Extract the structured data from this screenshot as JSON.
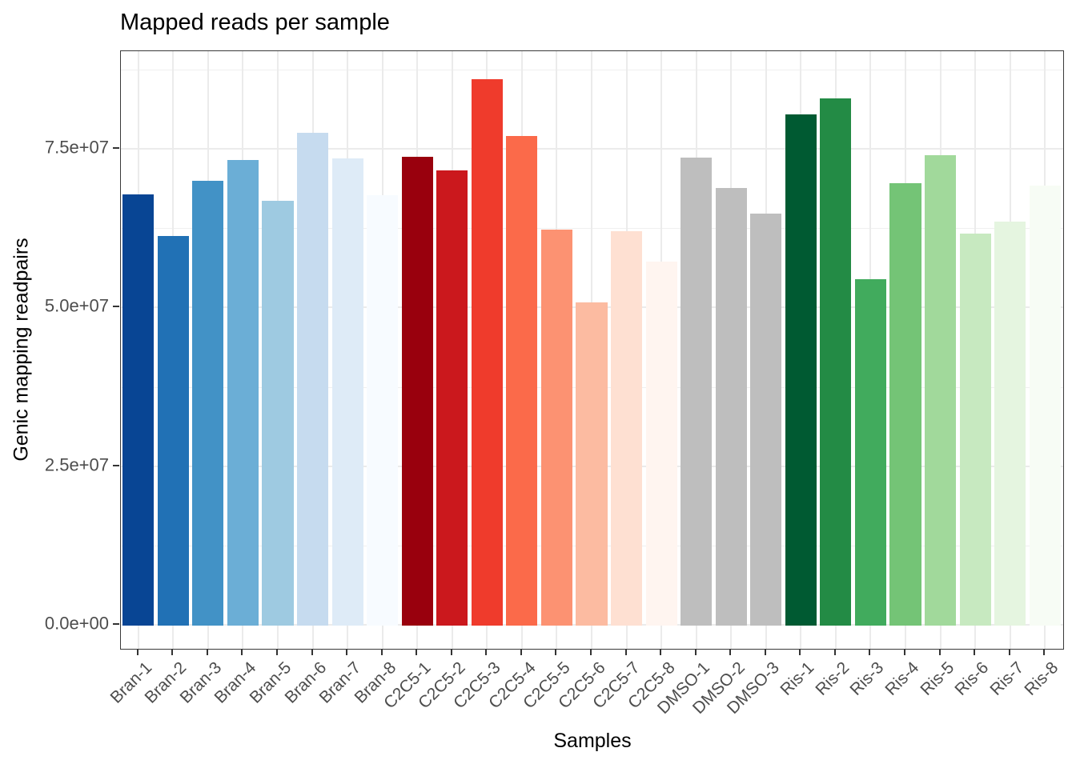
{
  "chart_data": {
    "type": "bar",
    "title": "Mapped reads per sample",
    "xlabel": "Samples",
    "ylabel": "Genic mapping readpairs",
    "categories": [
      "Bran-1",
      "Bran-2",
      "Bran-3",
      "Bran-4",
      "Bran-5",
      "Bran-6",
      "Bran-7",
      "Bran-8",
      "C2C5-1",
      "C2C5-2",
      "C2C5-3",
      "C2C5-4",
      "C2C5-5",
      "C2C5-6",
      "C2C5-7",
      "C2C5-8",
      "DMSO-1",
      "DMSO-2",
      "DMSO-3",
      "Ris-1",
      "Ris-2",
      "Ris-3",
      "Ris-4",
      "Ris-5",
      "Ris-6",
      "Ris-7",
      "Ris-8"
    ],
    "values": [
      67900000,
      61400000,
      70100000,
      73400000,
      66900000,
      77600000,
      73600000,
      67800000,
      73900000,
      71700000,
      86100000,
      77100000,
      62400000,
      50900000,
      62100000,
      57400000,
      73800000,
      69000000,
      64900000,
      80500000,
      83100000,
      54600000,
      69700000,
      74100000,
      61800000,
      63700000,
      69300000
    ],
    "bar_colors": [
      "#084594",
      "#2171B5",
      "#4292C6",
      "#6BAED6",
      "#9ECAE1",
      "#C6DBEF",
      "#DEEBF7",
      "#F7FBFF",
      "#99000D",
      "#CB181D",
      "#EF3B2C",
      "#FB6A4A",
      "#FC9272",
      "#FCBBA1",
      "#FEE0D2",
      "#FFF5F0",
      "#BEBEBE",
      "#BEBEBE",
      "#BEBEBE",
      "#005A32",
      "#238B45",
      "#41AB5D",
      "#74C476",
      "#A1D99B",
      "#C7E9C0",
      "#E5F5E0",
      "#F7FCF5"
    ],
    "groups": [
      {
        "name": "Bran",
        "samples": 8,
        "palette": "blues"
      },
      {
        "name": "C2C5",
        "samples": 8,
        "palette": "reds"
      },
      {
        "name": "DMSO",
        "samples": 3,
        "palette": "greys"
      },
      {
        "name": "Ris",
        "samples": 8,
        "palette": "greens"
      }
    ],
    "ylim": [
      0,
      90400000
    ],
    "yticks": {
      "values": [
        0,
        25000000,
        50000000,
        75000000
      ],
      "labels": [
        "0.0e+00",
        "2.5e+07",
        "5.0e+07",
        "7.5e+07"
      ]
    },
    "yminor": [
      12500000,
      37500000,
      62500000,
      87500000
    ],
    "grid": "on",
    "legend": "none",
    "bar_width_fraction": 0.9
  },
  "colors": {
    "background": "#FFFFFF",
    "panel_border": "#3A3A3A",
    "grid_major": "#EBEBEB",
    "grid_minor": "#F0F0F0",
    "tick_mark": "#333333",
    "tick_label": "#4D4D4D",
    "title_text": "#000000"
  }
}
